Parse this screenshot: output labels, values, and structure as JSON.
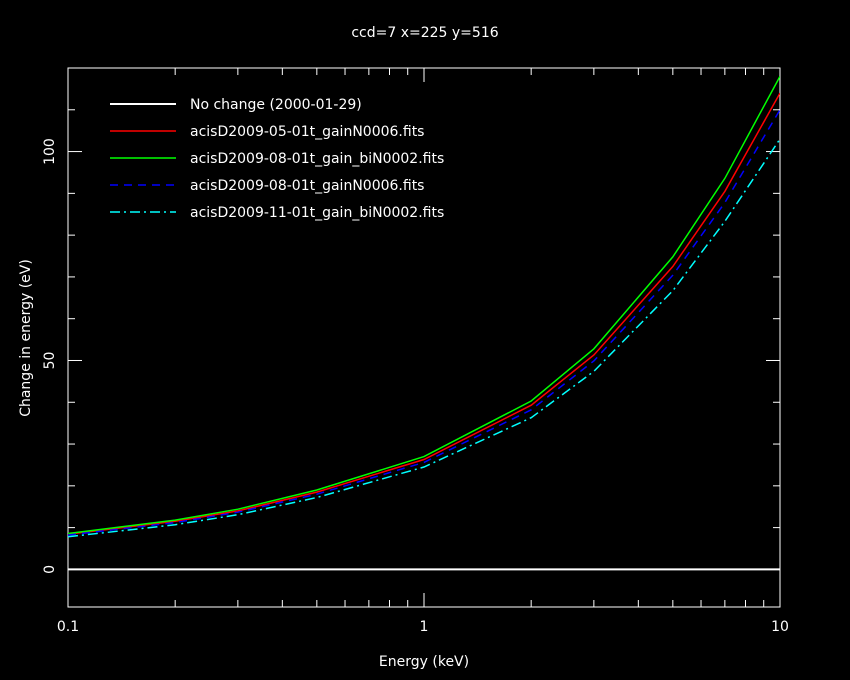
{
  "chart_data": {
    "type": "line",
    "title": "ccd=7 x=225 y=516",
    "xlabel": "Energy (keV)",
    "ylabel": "Change in energy (eV)",
    "x_scale": "log",
    "xlim": [
      0.1,
      10
    ],
    "ylim": [
      -9,
      120
    ],
    "x_ticks": [
      {
        "value": 0.1,
        "label": "0.1"
      },
      {
        "value": 1,
        "label": "1"
      },
      {
        "value": 10,
        "label": "10"
      }
    ],
    "y_ticks": [
      {
        "value": 0,
        "label": "0"
      },
      {
        "value": 50,
        "label": "50"
      },
      {
        "value": 100,
        "label": "100"
      }
    ],
    "grid": false,
    "legend_position": "top-left",
    "series": [
      {
        "name": "No change (2000-01-29)",
        "color": "#ffffff",
        "dash": "solid",
        "x": [
          0.1,
          0.2,
          0.5,
          1,
          2,
          5,
          10
        ],
        "y": [
          0,
          0,
          0,
          0,
          0,
          0,
          0
        ]
      },
      {
        "name": "acisD2009-05-01t_gainN0006.fits",
        "color": "#ff0000",
        "dash": "solid",
        "x": [
          0.1,
          0.2,
          0.3,
          0.5,
          1,
          2,
          3,
          5,
          7,
          10
        ],
        "y": [
          8.4,
          11.5,
          14,
          18.5,
          26.3,
          39.3,
          51.3,
          72.5,
          90.5,
          114
        ]
      },
      {
        "name": "acisD2009-08-01t_gain_biN0002.fits",
        "color": "#00ff00",
        "dash": "solid",
        "x": [
          0.1,
          0.2,
          0.3,
          0.5,
          1,
          2,
          3,
          5,
          7,
          10
        ],
        "y": [
          8.6,
          11.8,
          14.4,
          19,
          27,
          40.3,
          52.8,
          74.8,
          93.6,
          118
        ]
      },
      {
        "name": "acisD2009-08-01t_gainN0006.fits",
        "color": "#0000ff",
        "dash": "dashed",
        "x": [
          0.1,
          0.2,
          0.3,
          0.5,
          1,
          2,
          3,
          5,
          7,
          10
        ],
        "y": [
          8.2,
          11.2,
          13.7,
          18,
          25.6,
          38.2,
          49.9,
          70.4,
          87.8,
          110
        ]
      },
      {
        "name": "acisD2009-11-01t_gain_biN0002.fits",
        "color": "#00ffff",
        "dash": "dashdot",
        "x": [
          0.1,
          0.2,
          0.3,
          0.5,
          1,
          2,
          3,
          5,
          7,
          10
        ],
        "y": [
          7.8,
          10.7,
          13.1,
          17.2,
          24.5,
          36.3,
          47.4,
          66.7,
          83.3,
          103
        ]
      }
    ]
  }
}
